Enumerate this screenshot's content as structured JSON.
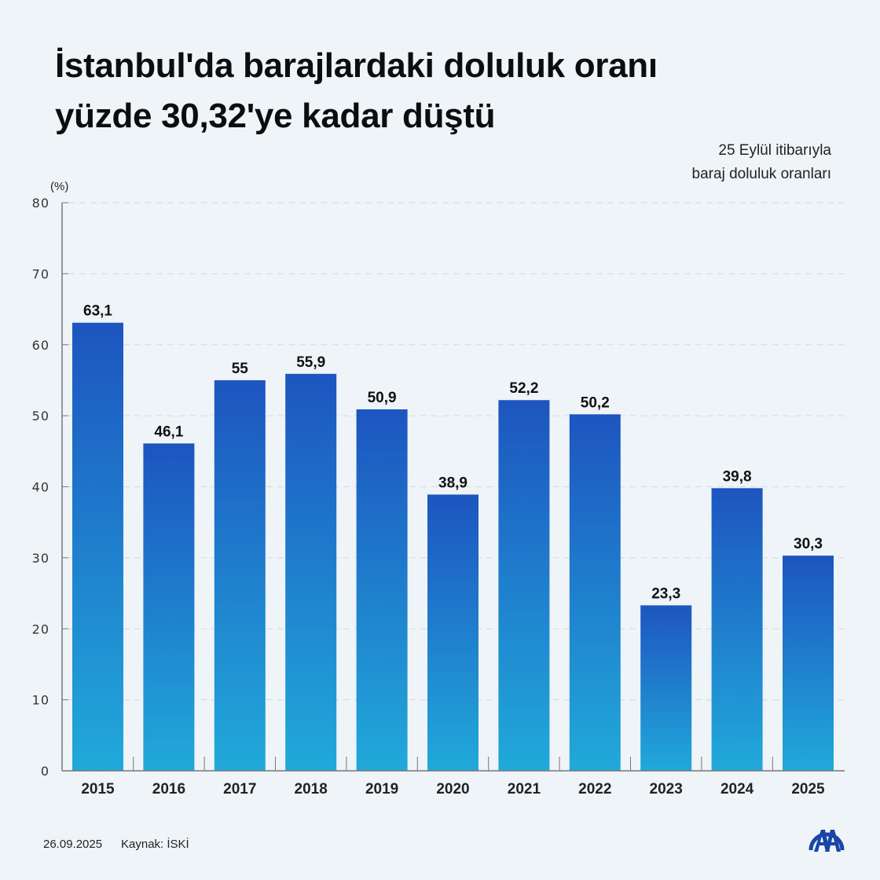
{
  "title_line1": "İstanbul'da barajlardaki doluluk oranı",
  "title_line2": "yüzde 30,32'ye kadar düştü",
  "subtitle_line1": "25 Eylül itibarıyla",
  "subtitle_line2": "baraj doluluk oranları",
  "footer": {
    "date": "26.09.2025",
    "source": "Kaynak: İSKİ"
  },
  "logo": "AA",
  "colors": {
    "bar_top": "#1d55c0",
    "bar_bottom": "#21a9da",
    "background": "#eff4f8"
  },
  "chart_data": {
    "type": "bar",
    "ylabel": "(%)",
    "ylim": [
      0,
      80
    ],
    "yticks": [
      0,
      10,
      20,
      30,
      40,
      50,
      60,
      70,
      80
    ],
    "grid": true,
    "categories": [
      "2015",
      "2016",
      "2017",
      "2018",
      "2019",
      "2020",
      "2021",
      "2022",
      "2023",
      "2024",
      "2025"
    ],
    "values": [
      63.1,
      46.1,
      55,
      55.9,
      50.9,
      38.9,
      52.2,
      50.2,
      23.3,
      39.8,
      30.3
    ],
    "labels": [
      "63,1",
      "46,1",
      "55",
      "55,9",
      "50,9",
      "38,9",
      "52,2",
      "50,2",
      "23,3",
      "39,8",
      "30,3"
    ]
  }
}
